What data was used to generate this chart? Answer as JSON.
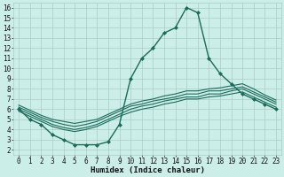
{
  "bg_color": "#cceee8",
  "grid_color": "#aaccc8",
  "line_color": "#1a6b5a",
  "xlabel": "Humidex (Indice chaleur)",
  "xlim": [
    -0.5,
    23.5
  ],
  "ylim": [
    1.5,
    16.5
  ],
  "xticks": [
    0,
    1,
    2,
    3,
    4,
    5,
    6,
    7,
    8,
    9,
    10,
    11,
    12,
    13,
    14,
    15,
    16,
    17,
    18,
    19,
    20,
    21,
    22,
    23
  ],
  "yticks": [
    2,
    3,
    4,
    5,
    6,
    7,
    8,
    9,
    10,
    11,
    12,
    13,
    14,
    15,
    16
  ],
  "lines": [
    {
      "x": [
        0,
        1,
        2,
        3,
        4,
        5,
        6,
        7,
        8,
        9,
        10,
        11,
        12,
        13,
        14,
        15,
        16,
        17,
        18,
        19,
        20,
        21,
        22,
        23
      ],
      "y": [
        6.0,
        5.0,
        4.5,
        3.5,
        3.0,
        2.5,
        2.5,
        2.5,
        2.8,
        4.5,
        9.0,
        11.0,
        12.0,
        13.5,
        14.0,
        16.0,
        15.5,
        11.0,
        9.5,
        8.5,
        7.5,
        7.0,
        6.5,
        6.0
      ],
      "marker": "D",
      "ms": 2.0,
      "lw": 1.0
    },
    {
      "x": [
        0,
        1,
        2,
        3,
        4,
        5,
        6,
        7,
        8,
        9,
        10,
        11,
        12,
        13,
        14,
        15,
        16,
        17,
        18,
        19,
        20,
        21,
        22,
        23
      ],
      "y": [
        6.0,
        5.5,
        5.0,
        4.5,
        4.2,
        4.0,
        4.2,
        4.5,
        5.0,
        5.5,
        6.0,
        6.3,
        6.5,
        6.8,
        7.0,
        7.2,
        7.2,
        7.5,
        7.5,
        7.8,
        8.0,
        7.5,
        7.0,
        6.5
      ],
      "marker": null,
      "ms": 0,
      "lw": 0.8
    },
    {
      "x": [
        0,
        1,
        2,
        3,
        4,
        5,
        6,
        7,
        8,
        9,
        10,
        11,
        12,
        13,
        14,
        15,
        16,
        17,
        18,
        19,
        20,
        21,
        22,
        23
      ],
      "y": [
        6.2,
        5.7,
        5.2,
        4.8,
        4.5,
        4.3,
        4.5,
        4.8,
        5.3,
        5.8,
        6.3,
        6.5,
        6.8,
        7.0,
        7.2,
        7.5,
        7.5,
        7.8,
        7.8,
        8.0,
        8.2,
        7.7,
        7.2,
        6.7
      ],
      "marker": null,
      "ms": 0,
      "lw": 0.8
    },
    {
      "x": [
        0,
        1,
        2,
        3,
        4,
        5,
        6,
        7,
        8,
        9,
        10,
        11,
        12,
        13,
        14,
        15,
        16,
        17,
        18,
        19,
        20,
        21,
        22,
        23
      ],
      "y": [
        6.4,
        5.9,
        5.4,
        5.0,
        4.8,
        4.6,
        4.8,
        5.0,
        5.5,
        6.0,
        6.5,
        6.8,
        7.0,
        7.3,
        7.5,
        7.8,
        7.8,
        8.0,
        8.1,
        8.3,
        8.5,
        8.0,
        7.4,
        6.9
      ],
      "marker": null,
      "ms": 0,
      "lw": 0.8
    },
    {
      "x": [
        0,
        1,
        2,
        3,
        4,
        5,
        6,
        7,
        8,
        9,
        10,
        11,
        12,
        13,
        14,
        15,
        16,
        17,
        18,
        19,
        20,
        21,
        22,
        23
      ],
      "y": [
        5.8,
        5.3,
        4.8,
        4.3,
        4.0,
        3.8,
        4.0,
        4.3,
        4.8,
        5.3,
        5.7,
        6.0,
        6.2,
        6.5,
        6.7,
        7.0,
        7.0,
        7.2,
        7.3,
        7.5,
        7.7,
        7.2,
        6.7,
        6.2
      ],
      "marker": null,
      "ms": 0,
      "lw": 0.8
    }
  ],
  "title_fontsize": 7,
  "xlabel_fontsize": 6.5,
  "tick_fontsize": 5.5
}
